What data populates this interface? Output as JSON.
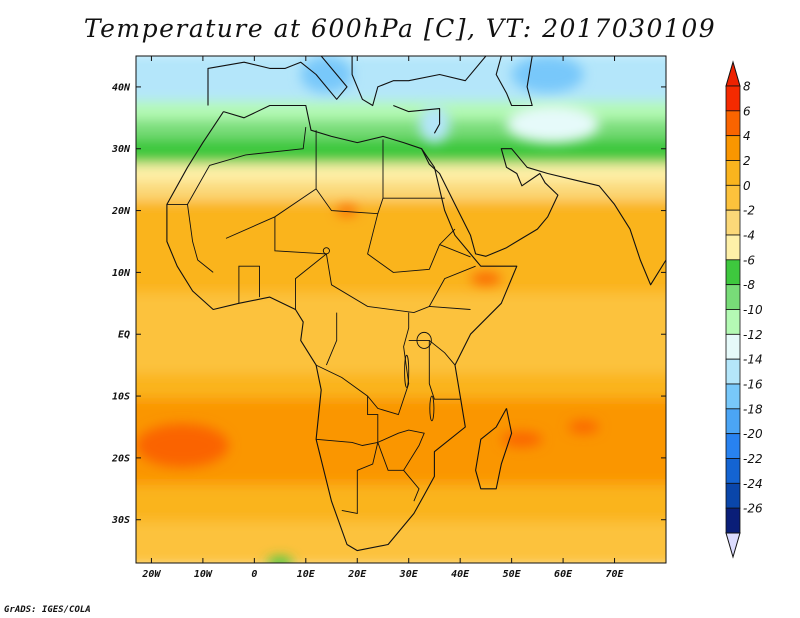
{
  "map": {
    "title": "Temperature at 600hPa [C], VT: 2017030109",
    "credit": "GrADS: IGES/COLA",
    "lon_range": [
      -23,
      80
    ],
    "lat_range": [
      -37,
      45
    ],
    "x_ticks": [
      {
        "lon": -20,
        "label": "20W"
      },
      {
        "lon": -10,
        "label": "10W"
      },
      {
        "lon": 0,
        "label": "0"
      },
      {
        "lon": 10,
        "label": "10E"
      },
      {
        "lon": 20,
        "label": "20E"
      },
      {
        "lon": 30,
        "label": "30E"
      },
      {
        "lon": 40,
        "label": "40E"
      },
      {
        "lon": 50,
        "label": "50E"
      },
      {
        "lon": 60,
        "label": "60E"
      },
      {
        "lon": 70,
        "label": "70E"
      }
    ],
    "y_ticks": [
      {
        "lat": 40,
        "label": "40N"
      },
      {
        "lat": 30,
        "label": "30N"
      },
      {
        "lat": 20,
        "label": "20N"
      },
      {
        "lat": 10,
        "label": "10N"
      },
      {
        "lat": 0,
        "label": "EQ"
      },
      {
        "lat": -10,
        "label": "10S"
      },
      {
        "lat": -20,
        "label": "20S"
      },
      {
        "lat": -30,
        "label": "30S"
      }
    ],
    "colorbar": {
      "levels": [
        "8",
        "6",
        "4",
        "2",
        "0",
        "-2",
        "-4",
        "-6",
        "-8",
        "-10",
        "-12",
        "-14",
        "-16",
        "-18",
        "-20",
        "-22",
        "-24",
        "-26"
      ],
      "colors_top_to_bottom": [
        "#f52a00",
        "#fa6400",
        "#fa9600",
        "#fab41e",
        "#fcc23c",
        "#fbd878",
        "#fef0a8",
        "#3ec83e",
        "#78dc78",
        "#b4fab4",
        "#e6fafa",
        "#b4e6fa",
        "#78c8fa",
        "#4ba5f5",
        "#2882f0",
        "#1464d2",
        "#0a46aa",
        "#0a1e78"
      ],
      "over_color": "#ee2200",
      "under_color": "#dcdcff"
    },
    "zones": [
      {
        "lat_top": 45,
        "lat_bottom": 37,
        "color": "#b4e6fa"
      },
      {
        "lat_top": 37,
        "lat_bottom": 34,
        "color": "#b4fab4"
      },
      {
        "lat_top": 34,
        "lat_bottom": 31,
        "color": "#78dc78"
      },
      {
        "lat_top": 31,
        "lat_bottom": 27,
        "color": "#3ec83e"
      },
      {
        "lat_top": 27,
        "lat_bottom": 24,
        "color": "#fef0a8"
      },
      {
        "lat_top": 24,
        "lat_bottom": 21,
        "color": "#fbd878"
      },
      {
        "lat_top": 21,
        "lat_bottom": 6,
        "color": "#fab41e"
      },
      {
        "lat_top": 6,
        "lat_bottom": -7,
        "color": "#fcc23c"
      },
      {
        "lat_top": -7,
        "lat_bottom": -11,
        "color": "#fab41e"
      },
      {
        "lat_top": -11,
        "lat_bottom": -25,
        "color": "#fa9600"
      },
      {
        "lat_top": -25,
        "lat_bottom": -31,
        "color": "#fab41e"
      },
      {
        "lat_top": -31,
        "lat_bottom": -37,
        "color": "#fcc23c"
      }
    ],
    "warm_patches": [
      {
        "name": "south-atlantic-warm",
        "lon": -14,
        "lat": -18,
        "rx": 9,
        "ry": 3.5,
        "color": "#fa6400"
      },
      {
        "name": "mozambique-channel-warm",
        "lon": 52,
        "lat": -17,
        "rx": 4,
        "ry": 1.2,
        "color": "#fa6400"
      },
      {
        "name": "indian-ocean-warm",
        "lon": 64,
        "lat": -15,
        "rx": 3,
        "ry": 1,
        "color": "#fa6400"
      },
      {
        "name": "sahel-warm",
        "lon": 18,
        "lat": 20,
        "rx": 2,
        "ry": 0.8,
        "color": "#fa6400"
      },
      {
        "name": "horn-warm",
        "lon": 45,
        "lat": 9,
        "rx": 3,
        "ry": 1,
        "color": "#fa6400"
      }
    ],
    "cold_patches": [
      {
        "name": "mediterranean-cold",
        "lon": 14,
        "lat": 42,
        "rx": 5,
        "ry": 3,
        "color": "#78c8fa"
      },
      {
        "name": "iran-cold",
        "lon": 57,
        "lat": 42,
        "rx": 7,
        "ry": 3,
        "color": "#78c8fa"
      },
      {
        "name": "middle-east-cold",
        "lon": 35,
        "lat": 34,
        "rx": 3,
        "ry": 3,
        "color": "#b4e6fa"
      },
      {
        "name": "arabia-cool",
        "lon": 58,
        "lat": 34,
        "rx": 9,
        "ry": 3,
        "color": "#e6fafa"
      },
      {
        "name": "gulf-of-guinea-green",
        "lon": 5,
        "lat": -37,
        "rx": 2.5,
        "ry": 1,
        "color": "#3ec83e"
      }
    ],
    "coastlines": [
      {
        "name": "africa-coastline",
        "points": [
          [
            -6,
            36
          ],
          [
            -10,
            31
          ],
          [
            -13,
            27
          ],
          [
            -17,
            21
          ],
          [
            -17,
            15
          ],
          [
            -15,
            11
          ],
          [
            -12,
            7
          ],
          [
            -8,
            4
          ],
          [
            -3,
            5
          ],
          [
            3,
            6
          ],
          [
            8,
            4
          ],
          [
            9.5,
            2
          ],
          [
            9,
            -1
          ],
          [
            12,
            -5
          ],
          [
            13,
            -9
          ],
          [
            12,
            -17
          ],
          [
            15,
            -27
          ],
          [
            18,
            -34
          ],
          [
            20,
            -35
          ],
          [
            26,
            -34
          ],
          [
            31,
            -29
          ],
          [
            33,
            -26
          ],
          [
            35,
            -23
          ],
          [
            35,
            -19
          ],
          [
            41,
            -15
          ],
          [
            40,
            -10
          ],
          [
            39,
            -5
          ],
          [
            42,
            0
          ],
          [
            48,
            5
          ],
          [
            51,
            11
          ],
          [
            44,
            11
          ],
          [
            43,
            12
          ],
          [
            39,
            16
          ],
          [
            37,
            20
          ],
          [
            35,
            27
          ],
          [
            32.5,
            30
          ],
          [
            29,
            31
          ],
          [
            25,
            32
          ],
          [
            20,
            31
          ],
          [
            15,
            32
          ],
          [
            11,
            33
          ],
          [
            10,
            37
          ],
          [
            3,
            37
          ],
          [
            -2,
            35
          ],
          [
            -6,
            36
          ]
        ]
      },
      {
        "name": "madagascar-coastline",
        "points": [
          [
            49,
            -12
          ],
          [
            50,
            -16
          ],
          [
            48,
            -21
          ],
          [
            47,
            -25
          ],
          [
            44,
            -25
          ],
          [
            43,
            -22
          ],
          [
            44,
            -17
          ],
          [
            47,
            -15
          ],
          [
            49,
            -12
          ]
        ]
      },
      {
        "name": "arabia-coastline",
        "points": [
          [
            32.5,
            30
          ],
          [
            34,
            27.5
          ],
          [
            36,
            26
          ],
          [
            39,
            21
          ],
          [
            42,
            16
          ],
          [
            43,
            13
          ],
          [
            45,
            12.6
          ],
          [
            49,
            14
          ],
          [
            52,
            15.5
          ],
          [
            55,
            17
          ],
          [
            57,
            19
          ],
          [
            59,
            22.5
          ],
          [
            56.5,
            24.5
          ],
          [
            55.5,
            26
          ],
          [
            52,
            24
          ],
          [
            51,
            26
          ],
          [
            49,
            27
          ],
          [
            48,
            30
          ],
          [
            50,
            30
          ],
          [
            53,
            27
          ],
          [
            57,
            26
          ],
          [
            62,
            25
          ],
          [
            67,
            24
          ],
          [
            70,
            21
          ],
          [
            73,
            17
          ],
          [
            75,
            12
          ],
          [
            77,
            8
          ],
          [
            80,
            12
          ]
        ]
      },
      {
        "name": "europe-coastline",
        "points": [
          [
            -9,
            37
          ],
          [
            -9,
            43
          ],
          [
            -2,
            44
          ],
          [
            3,
            43
          ],
          [
            6,
            43
          ],
          [
            9,
            44
          ],
          [
            12,
            42
          ],
          [
            16,
            38
          ],
          [
            18,
            40
          ],
          [
            13,
            45
          ]
        ]
      },
      {
        "name": "balkans-turkey-coastline",
        "points": [
          [
            19,
            45
          ],
          [
            19,
            42
          ],
          [
            21,
            38
          ],
          [
            23,
            37
          ],
          [
            24,
            40
          ],
          [
            27,
            41
          ],
          [
            30,
            41
          ],
          [
            36,
            42
          ],
          [
            41,
            41
          ],
          [
            45,
            45
          ]
        ]
      },
      {
        "name": "turkey-south-coastline",
        "points": [
          [
            27,
            37
          ],
          [
            30,
            36
          ],
          [
            36,
            36.5
          ],
          [
            36,
            34
          ],
          [
            35,
            32.5
          ]
        ]
      },
      {
        "name": "caspian-coastline",
        "points": [
          [
            48,
            45
          ],
          [
            47,
            42
          ],
          [
            49,
            39
          ],
          [
            50,
            37
          ],
          [
            54,
            37
          ],
          [
            53,
            40
          ],
          [
            54,
            45
          ]
        ]
      }
    ],
    "borders": [
      {
        "points": [
          [
            -17,
            21
          ],
          [
            -13,
            21
          ],
          [
            -8.7,
            27.3
          ],
          [
            -1.7,
            29
          ],
          [
            9.5,
            30
          ],
          [
            10,
            33.5
          ]
        ]
      },
      {
        "points": [
          [
            -13,
            21
          ],
          [
            -12,
            15
          ],
          [
            -11,
            12
          ],
          [
            -8,
            10
          ]
        ]
      },
      {
        "points": [
          [
            -5.5,
            15.5
          ],
          [
            4,
            19
          ],
          [
            12,
            23.5
          ],
          [
            15,
            20
          ],
          [
            24,
            19.5
          ],
          [
            25,
            22
          ],
          [
            25,
            31.5
          ]
        ]
      },
      {
        "points": [
          [
            12,
            23.5
          ],
          [
            12,
            33
          ]
        ]
      },
      {
        "points": [
          [
            4,
            19
          ],
          [
            4,
            13.5
          ],
          [
            14,
            13
          ],
          [
            15,
            8
          ],
          [
            22,
            4.5
          ],
          [
            31,
            3.5
          ],
          [
            34,
            4.5
          ],
          [
            42,
            4
          ]
        ]
      },
      {
        "points": [
          [
            25,
            22
          ],
          [
            37,
            22
          ]
        ]
      },
      {
        "points": [
          [
            24,
            19.5
          ],
          [
            22,
            13
          ],
          [
            27,
            10
          ],
          [
            34,
            10.5
          ],
          [
            36,
            14.5
          ],
          [
            39,
            17
          ]
        ]
      },
      {
        "points": [
          [
            36,
            14.5
          ],
          [
            42,
            12.5
          ]
        ]
      },
      {
        "points": [
          [
            34,
            4.5
          ],
          [
            37,
            9
          ],
          [
            43,
            11
          ]
        ]
      },
      {
        "points": [
          [
            -3,
            5
          ],
          [
            -3,
            11
          ],
          [
            1,
            11
          ],
          [
            1,
            6
          ]
        ]
      },
      {
        "points": [
          [
            8,
            4
          ],
          [
            8,
            9
          ],
          [
            14,
            13
          ]
        ]
      },
      {
        "points": [
          [
            16,
            3.5
          ],
          [
            16,
            -1
          ],
          [
            14,
            -5
          ]
        ]
      },
      {
        "points": [
          [
            12,
            -5
          ],
          [
            17,
            -7
          ],
          [
            22,
            -10
          ],
          [
            24,
            -12
          ],
          [
            28,
            -13
          ],
          [
            30,
            -8
          ],
          [
            29,
            -2
          ],
          [
            30,
            1
          ],
          [
            30,
            3.5
          ]
        ]
      },
      {
        "points": [
          [
            30,
            -1
          ],
          [
            34,
            -1
          ],
          [
            37,
            -3
          ],
          [
            39,
            -5
          ]
        ]
      },
      {
        "points": [
          [
            34,
            -1
          ],
          [
            34,
            -8
          ],
          [
            35,
            -10.5
          ],
          [
            40,
            -10.5
          ]
        ]
      },
      {
        "points": [
          [
            12,
            -17
          ],
          [
            19,
            -17.5
          ],
          [
            21,
            -18
          ],
          [
            24,
            -17.5
          ],
          [
            23,
            -21
          ],
          [
            20,
            -22
          ],
          [
            20,
            -25
          ],
          [
            20,
            -29
          ],
          [
            17,
            -28.5
          ]
        ]
      },
      {
        "points": [
          [
            24,
            -17.5
          ],
          [
            26,
            -22
          ],
          [
            29,
            -22
          ],
          [
            32,
            -18
          ],
          [
            33,
            -16
          ],
          [
            30,
            -15.5
          ],
          [
            28,
            -16
          ],
          [
            24,
            -17.5
          ]
        ]
      },
      {
        "points": [
          [
            22,
            -10
          ],
          [
            22,
            -13
          ],
          [
            24,
            -13
          ],
          [
            24,
            -17.5
          ]
        ]
      },
      {
        "points": [
          [
            29,
            -22
          ],
          [
            32,
            -25
          ],
          [
            31,
            -27
          ]
        ]
      }
    ],
    "lakes": [
      {
        "name": "lake-victoria",
        "lon": 33,
        "lat": -1,
        "rx": 1.4,
        "ry": 1.3
      },
      {
        "name": "lake-tanganyika",
        "lon": 29.6,
        "lat": -6,
        "rx": 0.4,
        "ry": 2.6
      },
      {
        "name": "lake-malawi",
        "lon": 34.5,
        "lat": -12,
        "rx": 0.4,
        "ry": 2
      },
      {
        "name": "lake-chad",
        "lon": 14,
        "lat": 13.5,
        "rx": 0.6,
        "ry": 0.5
      }
    ]
  }
}
